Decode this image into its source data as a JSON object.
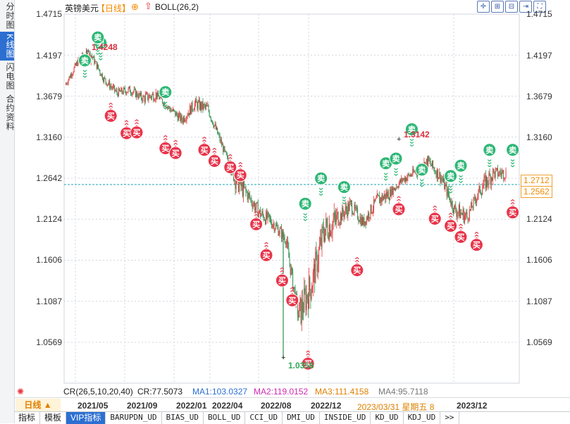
{
  "sidebar": {
    "items": [
      {
        "label": "分时图",
        "active": false
      },
      {
        "label": "K线图",
        "active": true
      },
      {
        "label": "闪电图",
        "active": false
      },
      {
        "label": "合约资料",
        "active": false
      }
    ]
  },
  "header": {
    "symbol": "英镑美元",
    "period_tag": "【日线】",
    "add_icon": "circle-plus-icon",
    "indicator_icon": "red-arrow-icon",
    "indicator": "BOLL(26,2)",
    "tools": [
      "crosshair-icon",
      "zoom-in-icon",
      "zoom-out-icon",
      "scroll-end-icon",
      "fullscreen-icon"
    ]
  },
  "y_axis": {
    "ticks": [
      "1.4715",
      "1.4197",
      "1.3679",
      "1.3160",
      "1.2642",
      "1.2124",
      "1.1606",
      "1.1087",
      "1.0569"
    ],
    "current_price": "1.2712",
    "reference_price": "1.2562"
  },
  "annotations": {
    "high": "1.4248",
    "high2": "1.3142",
    "low": "1.0356"
  },
  "indicator_bar": {
    "cr": "CR(26,5,10,20,40)",
    "cr_value": "CR:77.5073",
    "ma1": "MA1:103.0327",
    "ma2": "MA2:119.0152",
    "ma3": "MA3:111.4158",
    "ma4": "MA4:95.7118"
  },
  "x_axis": {
    "period_button": "日线 ▲",
    "labels": [
      "2021/05",
      "2021/09",
      "2022/01",
      "2022/04",
      "2022/08",
      "2022/12",
      "2023/12"
    ],
    "cursor_label": "2023/03/31  星期五  8"
  },
  "tabs": [
    "指标",
    "模板",
    "VIP指标",
    "BARUPDN_UD",
    "BIAS_UD",
    "BOLL_UD",
    "CCI_UD",
    "DMI_UD",
    "INSIDE_UD",
    "KD_UD",
    "KDJ_UD",
    ">>"
  ],
  "colors": {
    "up": "#e8343c",
    "down": "#2f8f4e",
    "buy_marker": "#e8344a",
    "sell_marker": "#2eb776",
    "accent": "#f08a00",
    "grid": "#d0d6de",
    "dashed": "#20a0b0"
  },
  "signals": {
    "buy_label": "买",
    "sell_label": "卖",
    "buy": [
      [
        "2021/06",
        1.343
      ],
      [
        "2021/07",
        1.321
      ],
      [
        "2021/08",
        1.322
      ],
      [
        "2021/10",
        1.302
      ],
      [
        "2021/11",
        1.296
      ],
      [
        "2022/01",
        1.3
      ],
      [
        "2022/02",
        1.286
      ],
      [
        "2022/03",
        1.278
      ],
      [
        "2022/04",
        1.268
      ],
      [
        "2022/05",
        1.206
      ],
      [
        "2022/06",
        1.167
      ],
      [
        "2022/07",
        1.135
      ],
      [
        "2022/08",
        1.11
      ],
      [
        "2022/09",
        1.03
      ],
      [
        "2023/01",
        1.148
      ],
      [
        "2023/04",
        1.225
      ],
      [
        "2023/07",
        1.213
      ],
      [
        "2023/08",
        1.204
      ],
      [
        "2023/09",
        1.19
      ],
      [
        "2023/10",
        1.18
      ],
      [
        "2024/01",
        1.221
      ]
    ],
    "sell": [
      [
        "2021/04",
        1.413
      ],
      [
        "2021/05",
        1.435
      ],
      [
        "2021/05",
        1.442
      ],
      [
        "2021/10",
        1.373
      ],
      [
        "2022/09",
        1.232
      ],
      [
        "2022/10",
        1.264
      ],
      [
        "2022/12",
        1.253
      ],
      [
        "2023/03",
        1.283
      ],
      [
        "2023/04",
        1.289
      ],
      [
        "2023/05",
        1.326
      ],
      [
        "2023/06",
        1.275
      ],
      [
        "2023/08",
        1.267
      ],
      [
        "2023/09",
        1.28
      ],
      [
        "2023/11",
        1.3
      ],
      [
        "2024/01",
        1.3
      ]
    ]
  },
  "chart_data": {
    "type": "candlestick",
    "title": "英镑美元 日线",
    "y_range": [
      1.0356,
      1.4715
    ],
    "x": [
      "2021/03",
      "2021/04",
      "2021/05",
      "2021/06",
      "2021/07",
      "2021/08",
      "2021/09",
      "2021/10",
      "2021/11",
      "2021/12",
      "2022/01",
      "2022/02",
      "2022/03",
      "2022/04",
      "2022/05",
      "2022/06",
      "2022/07",
      "2022/08",
      "2022/09",
      "2022/10",
      "2022/11",
      "2022/12",
      "2023/01",
      "2023/02",
      "2023/03",
      "2023/04",
      "2023/05",
      "2023/06",
      "2023/07",
      "2023/08",
      "2023/09",
      "2023/10",
      "2023/11",
      "2023/12",
      "2024/01"
    ],
    "close": [
      1.382,
      1.412,
      1.42,
      1.389,
      1.372,
      1.376,
      1.365,
      1.37,
      1.353,
      1.338,
      1.358,
      1.352,
      1.31,
      1.265,
      1.245,
      1.22,
      1.208,
      1.188,
      1.09,
      1.13,
      1.2,
      1.212,
      1.23,
      1.208,
      1.235,
      1.245,
      1.262,
      1.272,
      1.285,
      1.265,
      1.225,
      1.215,
      1.25,
      1.27,
      1.271
    ],
    "high": [
      1.397,
      1.423,
      1.4248,
      1.402,
      1.388,
      1.393,
      1.381,
      1.383,
      1.372,
      1.36,
      1.372,
      1.365,
      1.332,
      1.31,
      1.265,
      1.245,
      1.225,
      1.205,
      1.155,
      1.175,
      1.222,
      1.245,
      1.245,
      1.24,
      1.242,
      1.262,
      1.27,
      1.293,
      1.3142,
      1.29,
      1.278,
      1.248,
      1.265,
      1.285,
      1.29
    ],
    "low": [
      1.371,
      1.38,
      1.397,
      1.372,
      1.358,
      1.361,
      1.34,
      1.357,
      1.338,
      1.32,
      1.33,
      1.33,
      1.3,
      1.242,
      1.216,
      1.195,
      1.18,
      1.145,
      1.0356,
      1.06,
      1.12,
      1.19,
      1.2,
      1.195,
      1.19,
      1.23,
      1.235,
      1.245,
      1.27,
      1.245,
      1.22,
      1.205,
      1.205,
      1.24,
      1.255
    ],
    "boll": {
      "period": 26,
      "k": 2
    }
  }
}
